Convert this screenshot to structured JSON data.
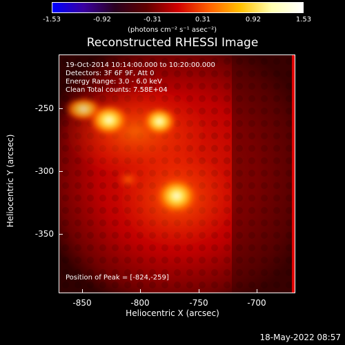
{
  "colorbar": {
    "tick_labels": [
      "-1.53",
      "-0.92",
      "-0.31",
      "0.31",
      "0.92",
      "1.53"
    ],
    "unit": "(photons cm⁻² s⁻¹ asec⁻²)",
    "colors": [
      "#0000ff",
      "#3a00a0",
      "#2a0020",
      "#600000",
      "#d00000",
      "#ff6000",
      "#ffc000",
      "#ffffb0",
      "#ffffff"
    ]
  },
  "title": "Reconstructed RHESSI Image",
  "info": {
    "line1": "19-Oct-2014 10:14:00.000 to 10:20:00.000",
    "line2": "Detectors: 3F 6F 9F, Att 0",
    "line3": "Energy Range: 3.0 - 6.0 keV",
    "line4": "Clean     Total counts: 7.58E+04"
  },
  "peak_label": "Position of Peak = [-824,-259]",
  "axes": {
    "xlabel": "Heliocentric X (arcsec)",
    "ylabel": "Heliocentric Y (arcsec)",
    "xticks": [
      "-850",
      "-800",
      "-750",
      "-700"
    ],
    "yticks": [
      "-250",
      "-300",
      "-350"
    ]
  },
  "timestamp": "18-May-2022 08:57"
}
